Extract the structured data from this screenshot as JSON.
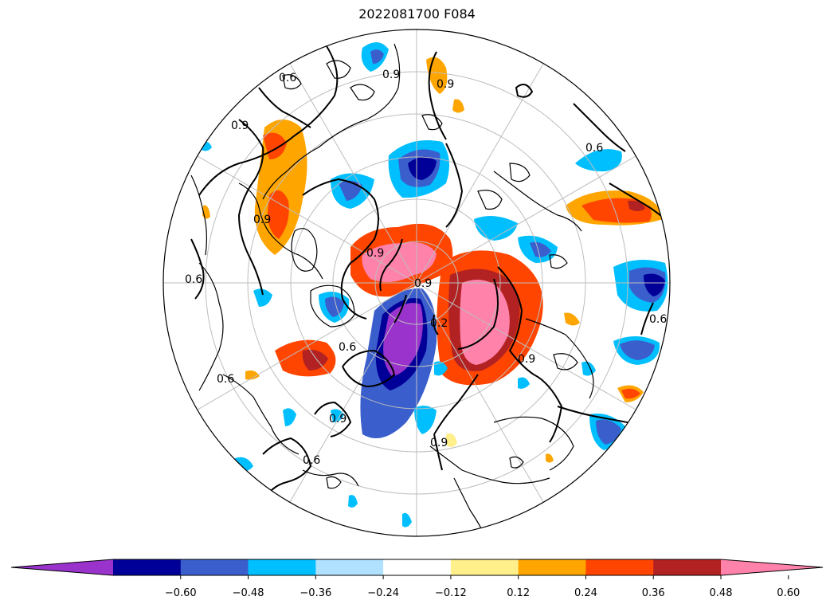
{
  "title": "2022081700 F084",
  "contour_labels": [
    "0.6",
    "0.9",
    "0.9",
    "0.9",
    "0.6",
    "0.6",
    "0.9",
    "0.9",
    "0.6",
    "0.6",
    "0.9",
    "0.6",
    "0.9",
    "0.9",
    "0.6",
    "0.9",
    "0.2"
  ],
  "colorbar": {
    "ticks": [
      "−0.60",
      "−0.48",
      "−0.36",
      "−0.24",
      "−0.12",
      "0.12",
      "0.24",
      "0.36",
      "0.48",
      "0.60"
    ],
    "colors": [
      "#9933cc",
      "#000099",
      "#3a5fcd",
      "#00bfff",
      "#b0e2ff",
      "#ffffff",
      "#fff08c",
      "#ffa500",
      "#ff4500",
      "#b22222",
      "#ff82ab"
    ],
    "extend": "both"
  },
  "map": {
    "projection": "north-polar-stereographic",
    "gridlines": true,
    "background": "#ffffff",
    "coastline_color": "#000000",
    "contour_color": "#000000",
    "grid_color": "#bdbdbd"
  }
}
